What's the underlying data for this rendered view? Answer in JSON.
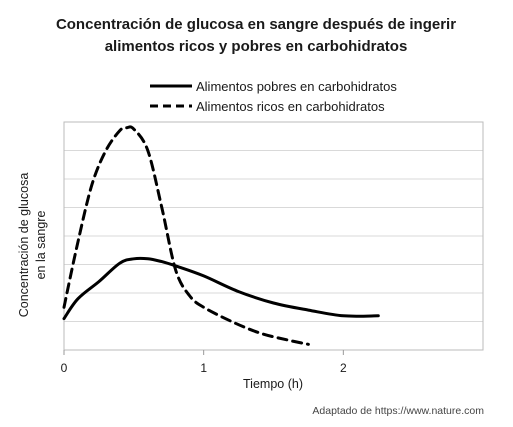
{
  "chart_data": {
    "type": "line",
    "title_lines": [
      "Concentración de glucosa en sangre después de ingerir",
      "alimentos ricos y pobres en carbohidratos"
    ],
    "xlabel": "Tiempo (h)",
    "ylabel_lines": [
      "Concentración de glucosa",
      "en la sangre"
    ],
    "x_ticks": [
      {
        "value": 0,
        "label": "0"
      },
      {
        "value": 1,
        "label": "1"
      },
      {
        "value": 2,
        "label": "2"
      }
    ],
    "xlim": [
      0,
      3
    ],
    "ylim": [
      0,
      8
    ],
    "grid": true,
    "legend_position": "top",
    "series": [
      {
        "name": "Alimentos pobres en carbohidratos",
        "style": "solid",
        "color": "#000000",
        "points": [
          [
            0.0,
            1.1
          ],
          [
            0.1,
            1.8
          ],
          [
            0.25,
            2.4
          ],
          [
            0.4,
            3.05
          ],
          [
            0.5,
            3.2
          ],
          [
            0.6,
            3.2
          ],
          [
            0.7,
            3.1
          ],
          [
            0.8,
            2.95
          ],
          [
            1.0,
            2.6
          ],
          [
            1.25,
            2.05
          ],
          [
            1.5,
            1.65
          ],
          [
            1.75,
            1.4
          ],
          [
            2.0,
            1.2
          ],
          [
            2.25,
            1.2
          ]
        ]
      },
      {
        "name": "Alimentos ricos en carbohidratos",
        "style": "dashed",
        "color": "#000000",
        "points": [
          [
            0.0,
            1.5
          ],
          [
            0.1,
            3.8
          ],
          [
            0.2,
            5.8
          ],
          [
            0.3,
            7.0
          ],
          [
            0.4,
            7.7
          ],
          [
            0.45,
            7.8
          ],
          [
            0.5,
            7.75
          ],
          [
            0.6,
            7.0
          ],
          [
            0.7,
            5.0
          ],
          [
            0.8,
            2.8
          ],
          [
            0.9,
            1.9
          ],
          [
            1.0,
            1.5
          ],
          [
            1.2,
            1.0
          ],
          [
            1.4,
            0.6
          ],
          [
            1.6,
            0.35
          ],
          [
            1.75,
            0.2
          ]
        ]
      }
    ]
  },
  "source": "Adaptado de https://www.nature.com"
}
